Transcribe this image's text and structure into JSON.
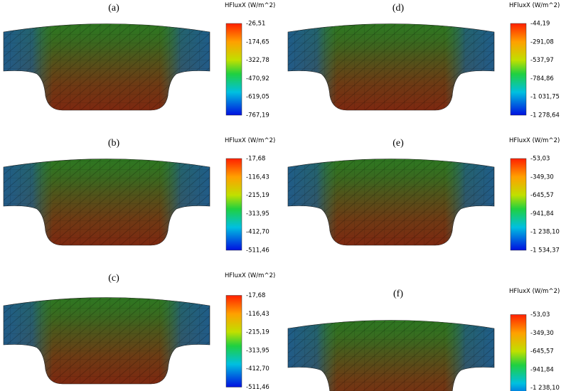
{
  "panels": [
    {
      "label": "(a)",
      "legend_title": "HFluxX (W/m^2)",
      "ticks": [
        "-26,51",
        "-174,65",
        "-322,78",
        "-470,92",
        "-619,05",
        "-767,19"
      ]
    },
    {
      "label": "(b)",
      "legend_title": "HFluxX (W/m^2)",
      "ticks": [
        "-17,68",
        "-116,43",
        "-215,19",
        "-313,95",
        "-412,70",
        "-511,46"
      ]
    },
    {
      "label": "(c)",
      "legend_title": "HFluxX (W/m^2)",
      "ticks": [
        "-17,68",
        "-116,43",
        "-215,19",
        "-313,95",
        "-412,70",
        "-511,46"
      ]
    },
    {
      "label": "(d)",
      "legend_title": "HFluxX (W/m^2)",
      "ticks": [
        "-44,19",
        "-291,08",
        "-537,97",
        "-784,86",
        "-1 031,75",
        "-1 278,64"
      ]
    },
    {
      "label": "(e)",
      "legend_title": "HFluxX (W/m^2)",
      "ticks": [
        "-53,03",
        "-349,30",
        "-645,57",
        "-941,84",
        "-1 238,10",
        "-1 534,37"
      ]
    },
    {
      "label": "(f)",
      "legend_title": "HFluxX (W/m^2)",
      "ticks": [
        "-53,03",
        "-349,30",
        "-645,57",
        "-941,84",
        "-1 238,10"
      ]
    }
  ]
}
